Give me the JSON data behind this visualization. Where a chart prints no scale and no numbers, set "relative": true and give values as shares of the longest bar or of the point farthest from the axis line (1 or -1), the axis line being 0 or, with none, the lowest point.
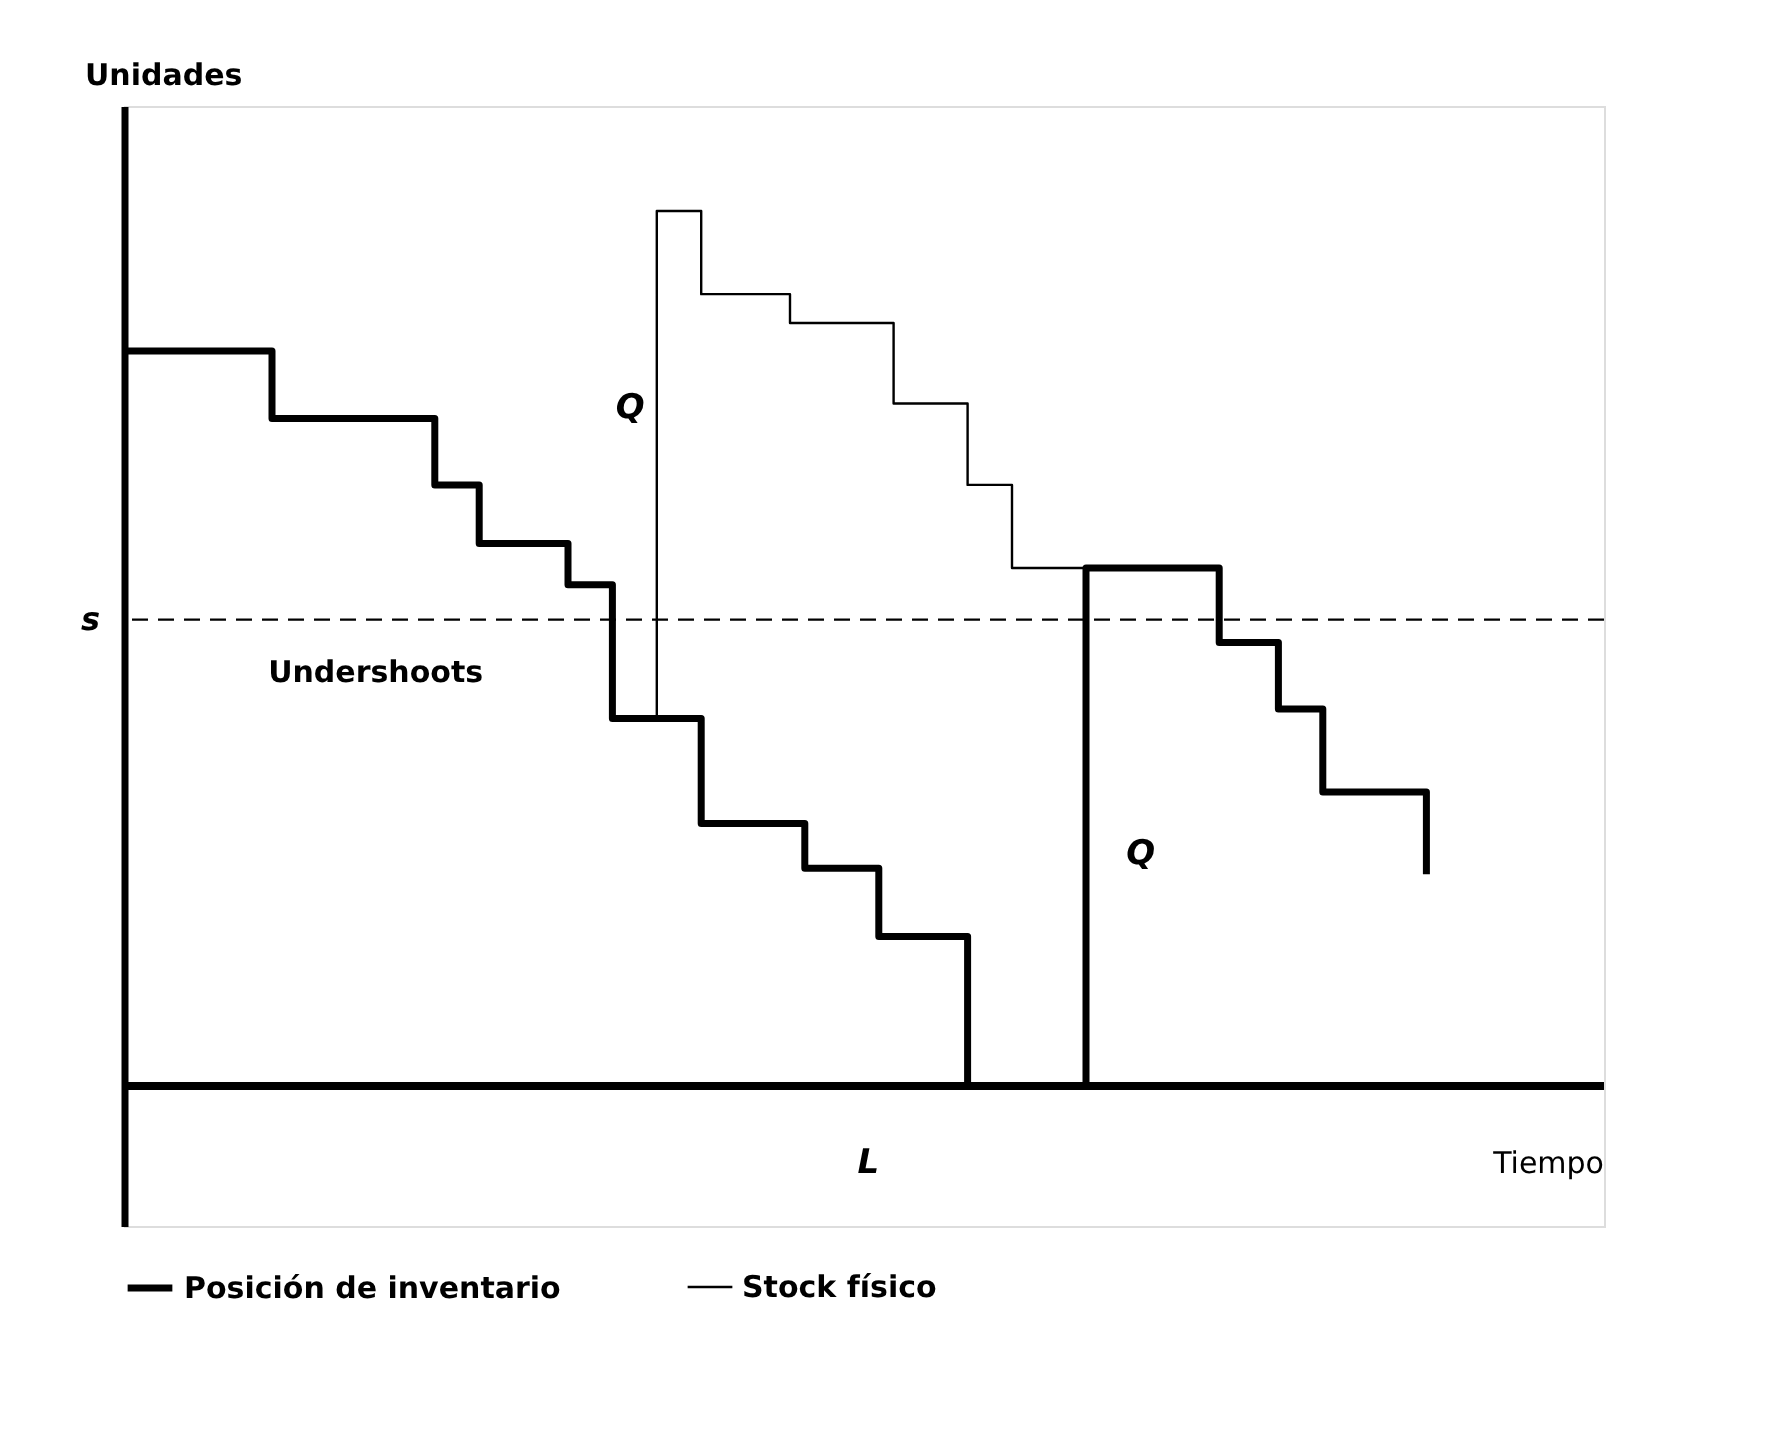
{
  "chart_data": {
    "type": "step",
    "relative": true,
    "ylabel": "Unidades",
    "tick_labels": false,
    "grid": false,
    "legend": "bottom",
    "line_style": "solid",
    "categories": [
      null,
      null,
      null,
      null,
      null,
      null,
      null,
      null,
      null,
      null,
      null,
      null,
      null,
      null,
      null,
      null,
      null,
      null,
      null,
      null,
      null,
      null,
      null,
      null,
      null,
      null,
      null,
      null,
      null,
      null,
      null,
      null,
      null,
      null,
      null,
      null,
      null,
      null,
      null,
      null,
      null,
      null,
      null,
      null,
      null,
      null,
      null,
      null,
      null,
      null,
      null,
      null,
      null,
      null,
      null,
      null,
      null,
      null,
      null,
      null,
      null,
      null,
      null,
      null,
      null,
      null,
      null,
      null,
      null,
      null,
      null,
      null,
      null,
      null,
      null,
      null,
      null,
      null,
      null,
      null,
      null,
      null,
      null,
      null,
      null,
      null,
      null,
      null,
      null,
      null,
      null,
      null,
      null,
      null,
      null,
      null,
      null,
      null,
      null,
      null,
      null
    ],
    "series": [
      {
        "name": "Posición de inventario",
        "color": "#000000",
        "values": [
          0.84,
          0.84,
          0.84,
          0.84,
          0.84,
          0.84,
          0.84,
          0.84,
          0.84,
          0.84,
          0.763,
          0.763,
          0.763,
          0.763,
          0.763,
          0.763,
          0.763,
          0.763,
          0.763,
          0.763,
          0.763,
          0.687,
          0.687,
          0.687,
          0.62,
          0.62,
          0.62,
          0.62,
          0.62,
          0.62,
          0.573,
          0.573,
          0.573,
          0.42,
          0.42,
          0.42,
          0.42,
          0.42,
          0.42,
          0.3,
          0.3,
          0.3,
          0.3,
          0.3,
          0.3,
          0.3,
          0.249,
          0.249,
          0.249,
          0.249,
          0.249,
          0.171,
          0.171,
          0.171,
          0.171,
          0.171,
          0.171,
          0,
          0,
          0,
          0,
          0,
          0,
          0,
          0,
          0.592,
          0.592,
          0.592,
          0.592,
          0.592,
          0.592,
          0.592,
          0.592,
          0.592,
          0.507,
          0.507,
          0.507,
          0.507,
          0.431,
          0.431,
          0.431,
          0.336,
          0.336,
          0.336,
          0.336,
          0.336,
          0.336,
          0.336,
          0.242,
          null,
          null,
          null,
          null,
          null,
          null,
          null,
          null,
          null,
          null,
          null,
          null
        ]
      },
      {
        "name": "Stock físico",
        "color": "#000000",
        "values": [
          null,
          null,
          null,
          null,
          null,
          null,
          null,
          null,
          null,
          null,
          null,
          null,
          null,
          null,
          null,
          null,
          null,
          null,
          null,
          null,
          null,
          null,
          null,
          null,
          null,
          null,
          null,
          null,
          null,
          null,
          null,
          null,
          null,
          null,
          null,
          0.42,
          1.0,
          1.0,
          1.0,
          0.905,
          0.905,
          0.905,
          0.905,
          0.905,
          0.905,
          0.872,
          0.872,
          0.872,
          0.872,
          0.872,
          0.872,
          0.872,
          0.78,
          0.78,
          0.78,
          0.78,
          0.78,
          0.687,
          0.687,
          0.687,
          0.592,
          0.592,
          0.592,
          0.592,
          0.592,
          0.592,
          null,
          null,
          null,
          null,
          null,
          null,
          null,
          null,
          null,
          null,
          null,
          null,
          null,
          null,
          null,
          null,
          null,
          null,
          null,
          null,
          null,
          null,
          null,
          null,
          null,
          null,
          null,
          null,
          null,
          null,
          null,
          null,
          null,
          null,
          null
        ]
      }
    ],
    "ref_lines": [
      {
        "axis": "y",
        "value": 0.533,
        "label": "s",
        "line_style": "dashed",
        "color": "#000000"
      }
    ],
    "annotations": [
      "Q",
      "Undershoots",
      "Q",
      "L",
      "Tiempo"
    ]
  }
}
